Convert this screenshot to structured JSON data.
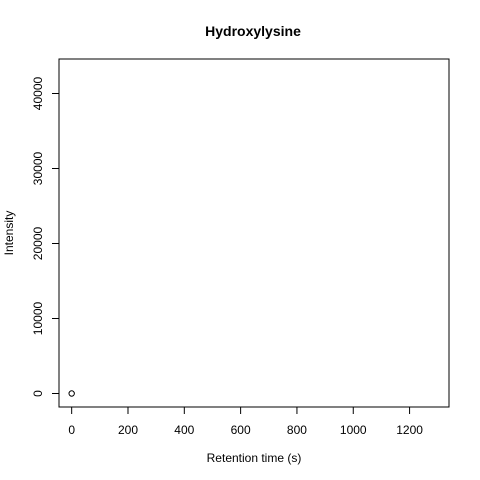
{
  "chart_data": {
    "type": "scatter",
    "title": "Hydroxylysine",
    "xlabel": "Retention time (s)",
    "ylabel": "Intensity",
    "xlim": [
      -45,
      1340
    ],
    "ylim": [
      -1800,
      44600
    ],
    "xticks": [
      0,
      200,
      400,
      600,
      800,
      1000,
      1200
    ],
    "yticks": [
      0,
      10000,
      20000,
      30000,
      40000
    ],
    "xtick_labels": [
      "0",
      "200",
      "400",
      "600",
      "800",
      "1000",
      "1200"
    ],
    "ytick_labels": [
      "0",
      "10000",
      "20000",
      "30000",
      "40000"
    ],
    "grid": false,
    "points": [
      {
        "x": 0,
        "y": 0
      }
    ],
    "point_style": "open-circle",
    "colors": {
      "point": "#000000",
      "axis": "#000000"
    }
  }
}
